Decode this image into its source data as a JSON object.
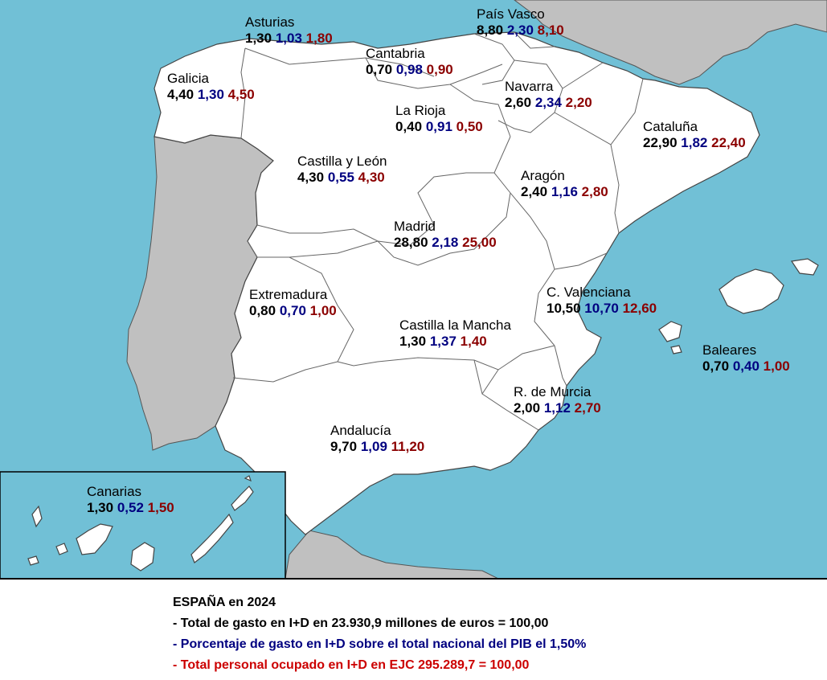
{
  "colors": {
    "sea": "#71c0d6",
    "land": "#ffffff",
    "foreign_land": "#c0c0c0",
    "gasto": "#000000",
    "pib": "#000080",
    "personal": "#8b0000"
  },
  "regions": [
    {
      "id": "asturias",
      "name": "Asturias",
      "gasto": "1,30",
      "pib": "1,03",
      "personal": "1,80"
    },
    {
      "id": "pais-vasco",
      "name": "País Vasco",
      "gasto": "8,80",
      "pib": "2,30",
      "personal": "8,10"
    },
    {
      "id": "cantabria",
      "name": "Cantabria",
      "gasto": "0,70",
      "pib": "0,98",
      "personal": "0,90"
    },
    {
      "id": "galicia",
      "name": "Galicia",
      "gasto": "4,40",
      "pib": "1,30",
      "personal": "4,50"
    },
    {
      "id": "navarra",
      "name": "Navarra",
      "gasto": "2,60",
      "pib": "2,34",
      "personal": "2,20"
    },
    {
      "id": "la-rioja",
      "name": "La Rioja",
      "gasto": "0,40",
      "pib": "0,91",
      "personal": "0,50"
    },
    {
      "id": "cataluna",
      "name": "Cataluña",
      "gasto": "22,90",
      "pib": "1,82",
      "personal": "22,40"
    },
    {
      "id": "castilla-leon",
      "name": "Castilla y León",
      "gasto": "4,30",
      "pib": "0,55",
      "personal": "4,30"
    },
    {
      "id": "aragon",
      "name": "Aragón",
      "gasto": "2,40",
      "pib": "1,16",
      "personal": "2,80"
    },
    {
      "id": "madrid",
      "name": "Madrid",
      "gasto": "28,80",
      "pib": "2,18",
      "personal": "25,00"
    },
    {
      "id": "extremadura",
      "name": "Extremadura",
      "gasto": "0,80",
      "pib": "0,70",
      "personal": "1,00"
    },
    {
      "id": "c-valenciana",
      "name": "C. Valenciana",
      "gasto": "10,50",
      "pib": "10,70",
      "personal": "12,60"
    },
    {
      "id": "castilla-la-mancha",
      "name": "Castilla la Mancha",
      "gasto": "1,30",
      "pib": "1,37",
      "personal": "1,40"
    },
    {
      "id": "baleares",
      "name": "Baleares",
      "gasto": "0,70",
      "pib": "0,40",
      "personal": "1,00"
    },
    {
      "id": "murcia",
      "name": "R. de Murcia",
      "gasto": "2,00",
      "pib": "1,12",
      "personal": "2,70"
    },
    {
      "id": "andalucia",
      "name": "Andalucía",
      "gasto": "9,70",
      "pib": "1,09",
      "personal": "11,20"
    },
    {
      "id": "canarias",
      "name": "Canarias",
      "gasto": "1,30",
      "pib": "0,52",
      "personal": "1,50"
    }
  ],
  "legend": {
    "title": "ESPAÑA en 2024",
    "line_gasto": "- Total de gasto en I+D en 23.930,9 millones de euros = 100,00",
    "line_pib": "- Porcentaje de gasto en I+D sobre el total nacional del PIB el 1,50%",
    "line_personal": "- Total personal ocupado en I+D en EJC 295.289,7 = 100,00"
  }
}
